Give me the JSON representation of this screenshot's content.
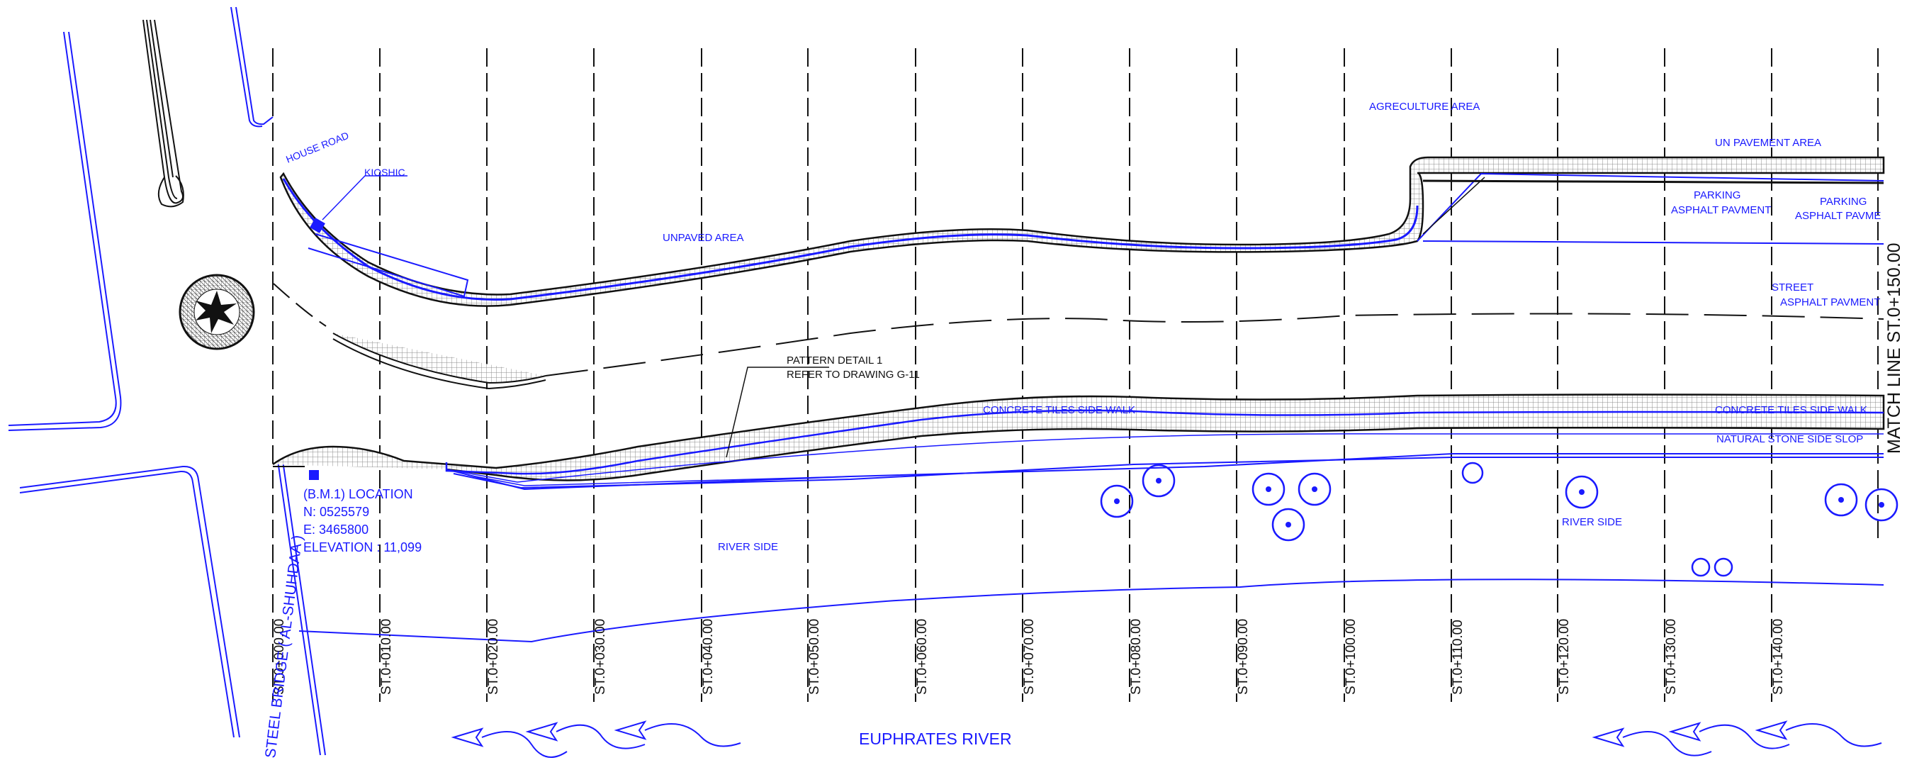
{
  "colors": {
    "blue": "#1a1aff",
    "black": "#111111",
    "hatch": "#888888"
  },
  "labels": {
    "agriculture_area": "AGRECULTURE AREA",
    "unpavement_area": "UN PAVEMENT AREA",
    "parking_left": [
      "PARKING",
      "ASPHALT PAVMENT"
    ],
    "parking_right": [
      "PARKING",
      "ASPHALT PAVME"
    ],
    "street": [
      "STREET",
      "ASPHALT PAVMENT"
    ],
    "unpaved_area": "UNPAVED AREA",
    "house_road": "HOUSE ROAD",
    "kioshic": "KIOSHIC",
    "pattern_detail": [
      "PATTERN DETAIL 1",
      "REFER TO DRAWING G-11"
    ],
    "concrete_tiles_1": "CONCRETE TILES SIDE WALK",
    "concrete_tiles_2": "CONCRETE TILES SIDE WALK",
    "natural_stone": "NATURAL STONE SIDE SLOP",
    "river_side_1": "RIVER SIDE",
    "river_side_2": "RIVER SIDE",
    "benchmark": [
      "(B.M.1) LOCATION",
      "N: 0525579",
      "E: 3465800",
      "ELEVATION : 11,099"
    ],
    "steel_bridge": "STEEL BRIDGE ( AL-SHUHDAA )",
    "euphrates": "EUPHRATES RIVER",
    "match_line": "MATCH LINE ST.0+150.00"
  },
  "stations": [
    "ST.0+000.00",
    "ST.0+010.00",
    "ST.0+020.00",
    "ST.0+030.00",
    "ST.0+040.00",
    "ST.0+050.00",
    "ST.0+060.00",
    "ST.0+070.00",
    "ST.0+080.00",
    "ST.0+090.00",
    "ST.0+100.00",
    "ST.0+110.00",
    "ST.0+120.00",
    "ST.0+130.00",
    "ST.0+140.00"
  ]
}
